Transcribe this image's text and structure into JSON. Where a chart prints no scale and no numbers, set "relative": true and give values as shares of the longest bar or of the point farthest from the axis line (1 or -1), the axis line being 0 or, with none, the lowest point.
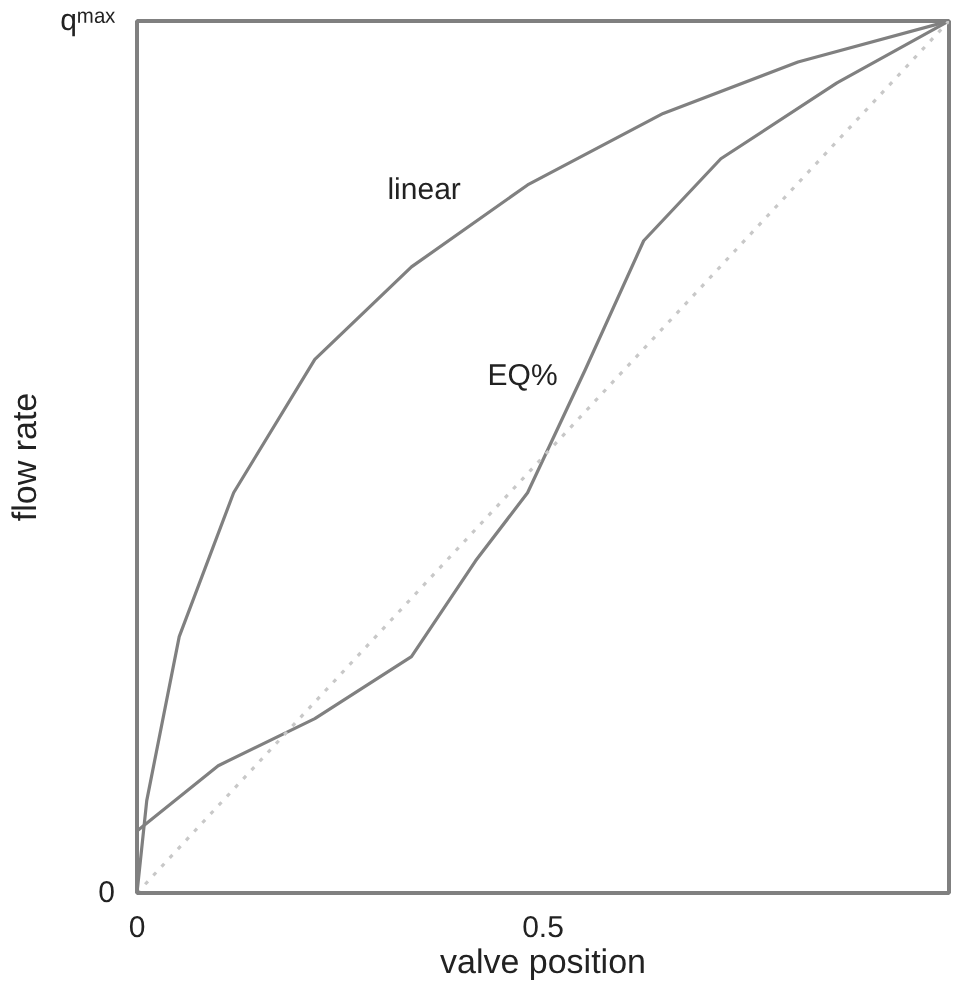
{
  "chart_data": {
    "type": "line",
    "xlabel": "valve position",
    "ylabel": "flow rate",
    "xlim": [
      0,
      1
    ],
    "relative": true,
    "xticks": [
      0,
      0.5
    ],
    "annotations": [
      "0",
      "qᵐᵃˣ"
    ],
    "grid": false,
    "marker": "none",
    "series": [
      {
        "name": "linear",
        "color": "#808080",
        "line_style": "solid",
        "x": [
          0,
          0.012,
          0.052,
          0.119,
          0.219,
          0.338,
          0.481,
          0.648,
          0.814,
          1
        ],
        "values": [
          0,
          0.106,
          0.294,
          0.459,
          0.612,
          0.718,
          0.812,
          0.894,
          0.953,
          1
        ]
      },
      {
        "name": "EQ%",
        "color": "#808080",
        "line_style": "solid",
        "x": [
          0,
          0,
          0.1,
          0.219,
          0.338,
          0.417,
          0.481,
          0.552,
          0.624,
          0.719,
          0.862,
          1
        ],
        "values": [
          0,
          0.071,
          0.146,
          0.2,
          0.271,
          0.381,
          0.459,
          0.6,
          0.748,
          0.842,
          0.929,
          1
        ]
      },
      {
        "color": "#c8c8c8",
        "line_style": "dotted",
        "x": [
          0,
          1
        ],
        "values": [
          0,
          1
        ]
      }
    ]
  }
}
